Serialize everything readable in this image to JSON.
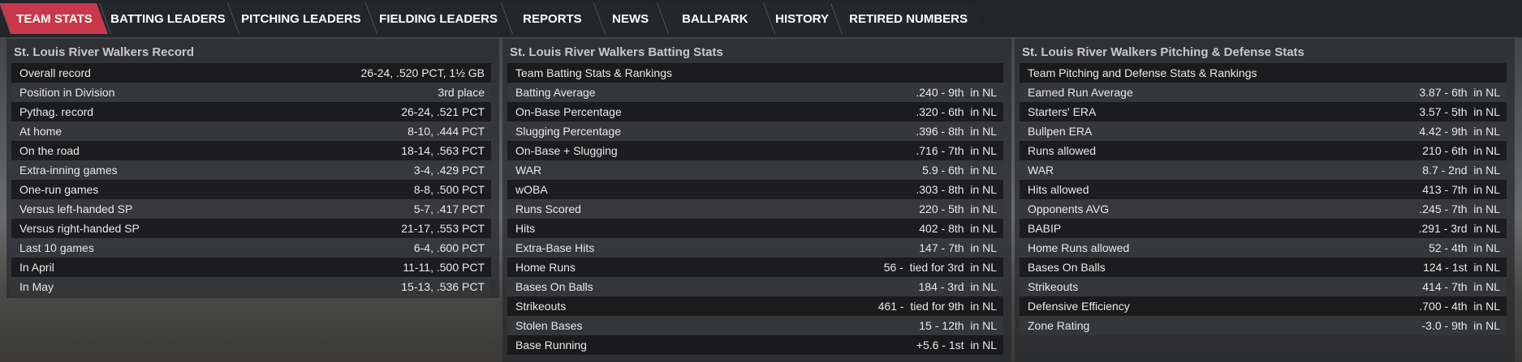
{
  "tabs": [
    "TEAM STATS",
    "BATTING LEADERS",
    "PITCHING LEADERS",
    "FIELDING LEADERS",
    "REPORTS",
    "NEWS",
    "BALLPARK",
    "HISTORY",
    "RETIRED NUMBERS"
  ],
  "active_tab": "TEAM STATS",
  "accent": "#c8384a",
  "record": {
    "title": "St. Louis River Walkers Record",
    "rows": [
      [
        "Overall record",
        "26-24, .520 PCT, 1½ GB"
      ],
      [
        "Position in Division",
        "3rd place"
      ],
      [
        "Pythag. record",
        "26-24, .521 PCT"
      ],
      [
        "At home",
        "8-10, .444 PCT"
      ],
      [
        "On the road",
        "18-14, .563 PCT"
      ],
      [
        "Extra-inning games",
        "3-4, .429 PCT"
      ],
      [
        "One-run games",
        "8-8, .500 PCT"
      ],
      [
        "Versus left-handed SP",
        "5-7, .417 PCT"
      ],
      [
        "Versus right-handed SP",
        "21-17, .553 PCT"
      ],
      [
        "Last 10 games",
        "6-4, .600 PCT"
      ],
      [
        "In April",
        "11-11, .500 PCT"
      ],
      [
        "In May",
        "15-13, .536 PCT"
      ]
    ]
  },
  "batting": {
    "title": "St. Louis River Walkers Batting Stats",
    "rows": [
      [
        "Team Batting Stats & Rankings",
        ""
      ],
      [
        "Batting Average",
        ".240 - 9th  in NL"
      ],
      [
        "On-Base Percentage",
        ".320 - 6th  in NL"
      ],
      [
        "Slugging Percentage",
        ".396 - 8th  in NL"
      ],
      [
        "On-Base + Slugging",
        ".716 - 7th  in NL"
      ],
      [
        "WAR",
        "5.9 - 6th  in NL"
      ],
      [
        "wOBA",
        ".303 - 8th  in NL"
      ],
      [
        "Runs Scored",
        "220 - 5th  in NL"
      ],
      [
        "Hits",
        "402 - 8th  in NL"
      ],
      [
        "Extra-Base Hits",
        "147 - 7th  in NL"
      ],
      [
        "Home Runs",
        "56 -  tied for 3rd  in NL"
      ],
      [
        "Bases On Balls",
        "184 - 3rd  in NL"
      ],
      [
        "Strikeouts",
        "461 -  tied for 9th  in NL"
      ],
      [
        "Stolen Bases",
        "15 - 12th  in NL"
      ],
      [
        "Base Running",
        "+5.6 - 1st  in NL"
      ]
    ]
  },
  "pitching": {
    "title": "St. Louis River Walkers Pitching & Defense Stats",
    "rows": [
      [
        "Team Pitching and Defense Stats & Rankings",
        ""
      ],
      [
        "Earned Run Average",
        "3.87 - 6th  in NL"
      ],
      [
        "Starters' ERA",
        "3.57 - 5th  in NL"
      ],
      [
        "Bullpen ERA",
        "4.42 - 9th  in NL"
      ],
      [
        "Runs allowed",
        "210 - 6th  in NL"
      ],
      [
        "WAR",
        "8.7 - 2nd  in NL"
      ],
      [
        "Hits allowed",
        "413 - 7th  in NL"
      ],
      [
        "Opponents AVG",
        ".245 - 7th  in NL"
      ],
      [
        "BABIP",
        ".291 - 3rd  in NL"
      ],
      [
        "Home Runs allowed",
        "52 - 4th  in NL"
      ],
      [
        "Bases On Balls",
        "124 - 1st  in NL"
      ],
      [
        "Strikeouts",
        "414 - 7th  in NL"
      ],
      [
        "Defensive Efficiency",
        ".700 - 4th  in NL"
      ],
      [
        "Zone Rating",
        "-3.0 - 9th  in NL"
      ]
    ]
  }
}
